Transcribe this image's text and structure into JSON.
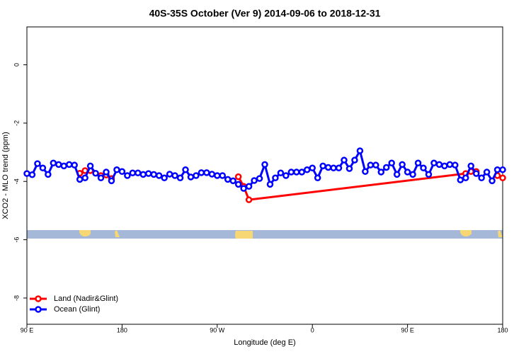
{
  "chart_data": {
    "type": "line",
    "title": "40S-35S October (Ver 9)   2014-09-06 to 2018-12-31",
    "x_label": "Longitude (deg E)",
    "y_label": "XCO2 - MLO trend (ppm)",
    "xlim": [
      90,
      540
    ],
    "ylim": [
      -8.9,
      1.3
    ],
    "xticks": [
      {
        "value": 90,
        "label": "90 E"
      },
      180,
      {
        "value": 270,
        "label": "90 W"
      },
      {
        "value": 360,
        "label": "0"
      },
      {
        "value": 450,
        "label": "90 E"
      },
      {
        "value": 540,
        "label": "180"
      }
    ],
    "yticks": [
      0,
      -2,
      -4,
      -6,
      -8
    ],
    "legend": "bottom-left",
    "series": [
      {
        "name": "Land (Nadir&Glint)",
        "color": "#ff0000",
        "x": [
          140,
          145,
          150,
          155,
          160,
          165,
          170,
          285,
          290,
          295,
          300,
          505,
          510,
          515,
          520,
          535,
          540
        ],
        "values": [
          -3.72,
          -3.63,
          -3.63,
          null,
          -3.8,
          -3.78,
          -3.9,
          null,
          -3.84,
          -4.17,
          -4.63,
          -3.73,
          -3.66,
          -3.66,
          null,
          -3.8,
          -3.88
        ]
      },
      {
        "name": "Ocean (Glint)",
        "color": "#0000ff",
        "x": [
          90,
          95,
          100,
          105,
          110,
          115,
          120,
          125,
          130,
          135,
          140,
          145,
          150,
          155,
          160,
          165,
          170,
          175,
          180,
          185,
          190,
          195,
          200,
          205,
          210,
          215,
          220,
          225,
          230,
          235,
          240,
          245,
          250,
          255,
          260,
          265,
          270,
          275,
          280,
          285,
          290,
          295,
          300,
          305,
          310,
          315,
          320,
          325,
          330,
          335,
          340,
          345,
          350,
          355,
          360,
          365,
          370,
          375,
          380,
          385,
          390,
          395,
          400,
          405,
          410,
          415,
          420,
          425,
          430,
          435,
          440,
          445,
          450,
          455,
          460,
          465,
          470,
          475,
          480,
          485,
          490,
          495,
          500,
          505,
          510,
          515,
          520,
          525,
          530,
          535,
          540
        ],
        "values": [
          -3.73,
          -3.77,
          -3.39,
          -3.54,
          -3.76,
          -3.37,
          -3.42,
          -3.47,
          -3.42,
          -3.44,
          -3.93,
          -3.88,
          -3.47,
          -3.72,
          -3.88,
          -3.68,
          -3.98,
          -3.6,
          -3.66,
          -3.8,
          -3.71,
          -3.71,
          -3.76,
          -3.73,
          -3.76,
          -3.8,
          -3.88,
          -3.75,
          -3.8,
          -3.88,
          -3.6,
          -3.85,
          -3.8,
          -3.7,
          -3.7,
          -3.75,
          -3.8,
          -3.8,
          -3.93,
          -3.98,
          -4.1,
          -4.24,
          -4.17,
          -3.97,
          -3.9,
          -3.42,
          -4.1,
          -3.88,
          -3.71,
          -3.8,
          -3.68,
          -3.68,
          -3.68,
          -3.6,
          -3.54,
          -3.88,
          -3.47,
          -3.52,
          -3.54,
          -3.54,
          -3.27,
          -3.56,
          -3.27,
          -2.95,
          -3.66,
          -3.44,
          -3.44,
          -3.68,
          -3.52,
          -3.37,
          -3.76,
          -3.42,
          -3.68,
          -3.76,
          -3.37,
          -3.54,
          -3.76,
          -3.37,
          -3.42,
          -3.47,
          -3.42,
          -3.44,
          -3.95,
          -3.88,
          -3.47,
          -3.73,
          -3.88,
          -3.68,
          -3.98,
          -3.6,
          -3.6
        ]
      }
    ]
  }
}
